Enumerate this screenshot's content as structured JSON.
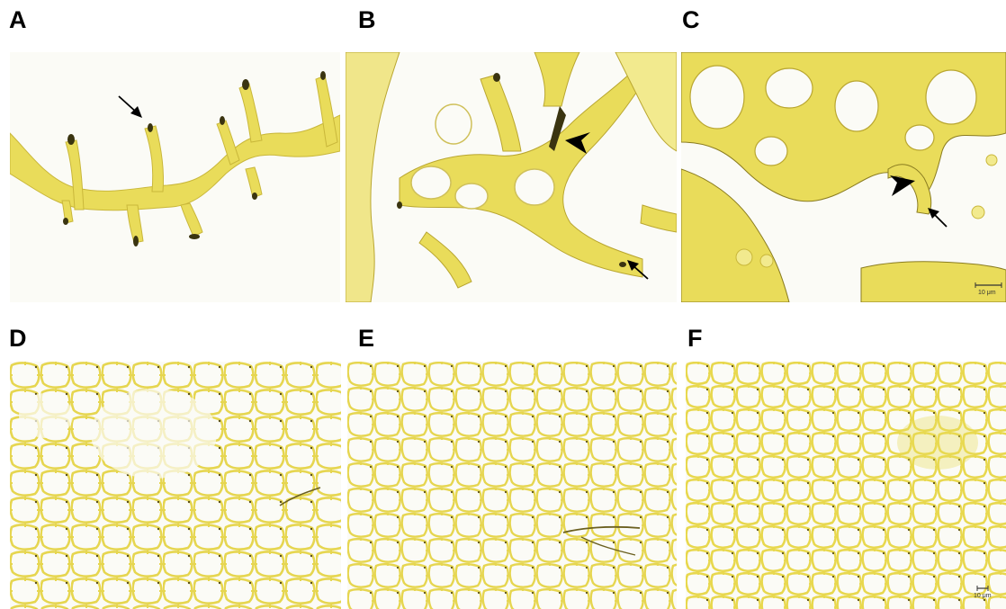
{
  "figure": {
    "panels": [
      {
        "id": "A",
        "label": "A",
        "arrows": 1,
        "arrowheads": 0,
        "scale_bar": ""
      },
      {
        "id": "B",
        "label": "B",
        "arrows": 1,
        "arrowheads": 1,
        "scale_bar": ""
      },
      {
        "id": "C",
        "label": "C",
        "arrows": 1,
        "arrowheads": 1,
        "scale_bar": "10 μm"
      },
      {
        "id": "D",
        "label": "D",
        "arrows": 0,
        "arrowheads": 0,
        "scale_bar": ""
      },
      {
        "id": "E",
        "label": "E",
        "arrows": 0,
        "arrowheads": 0,
        "scale_bar": ""
      },
      {
        "id": "F",
        "label": "F",
        "arrows": 0,
        "arrowheads": 0,
        "scale_bar": "10 μm"
      }
    ],
    "colors": {
      "background": "#fbfbf6",
      "tissue": "#e9dc5a",
      "tissue_light": "#f2ea8e",
      "tissue_edge": "#3a3410",
      "marker": "#000000"
    }
  }
}
